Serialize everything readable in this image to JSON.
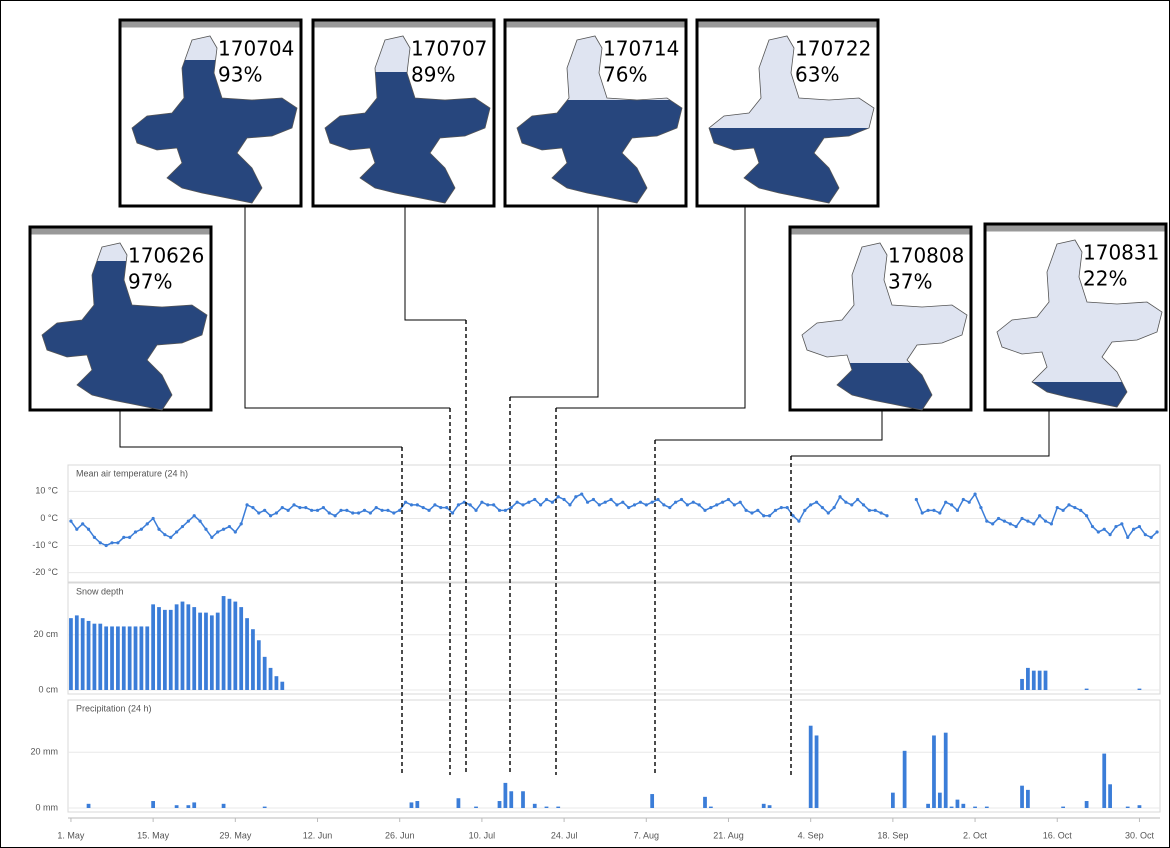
{
  "snapshots": [
    {
      "date": "170626",
      "cover": "97%"
    },
    {
      "date": "170704",
      "cover": "93%"
    },
    {
      "date": "170707",
      "cover": "89%"
    },
    {
      "date": "170714",
      "cover": "76%"
    },
    {
      "date": "170722",
      "cover": "63%"
    },
    {
      "date": "170808",
      "cover": "37%"
    },
    {
      "date": "170831",
      "cover": "22%"
    }
  ],
  "chart_data": [
    {
      "type": "line",
      "title": "Mean air temperature (24 h)",
      "color": "#3b7dd8",
      "grid": true,
      "ylim": [
        -22,
        19
      ],
      "yticks": [
        {
          "value": -20,
          "label": "-20 °C"
        },
        {
          "value": -10,
          "label": "-10 °C"
        },
        {
          "value": 0,
          "label": "0 °C"
        },
        {
          "value": 10,
          "label": "10 °C"
        }
      ],
      "values": [
        -1,
        -4,
        -2,
        -4,
        -7,
        -9,
        -10,
        -9,
        -9,
        -7,
        -7,
        -5,
        -4,
        -2,
        0,
        -4,
        -6,
        -7,
        -5,
        -3,
        -1,
        1,
        -1,
        -4,
        -7,
        -5,
        -4,
        -3,
        -5,
        -2,
        5,
        4,
        2,
        3,
        1,
        2,
        4,
        3,
        5,
        4,
        4,
        3,
        3,
        4,
        2,
        1,
        3,
        3,
        2,
        2,
        3,
        2,
        4,
        3,
        3,
        2,
        3,
        6,
        5,
        5,
        4,
        3,
        5,
        4,
        4,
        2,
        5,
        6,
        5,
        3,
        6,
        5,
        5,
        3,
        3,
        4,
        6,
        5,
        6,
        7,
        5,
        7,
        6,
        8,
        7,
        5,
        8,
        9,
        6,
        7,
        5,
        6,
        7,
        5,
        6,
        4,
        5,
        6,
        5,
        6,
        7,
        5,
        4,
        6,
        7,
        5,
        6,
        5,
        3,
        4,
        5,
        6,
        7,
        5,
        6,
        3,
        2,
        3,
        1,
        1,
        3,
        4,
        4,
        1,
        -1,
        3,
        5,
        6,
        4,
        2,
        4,
        8,
        6,
        5,
        7,
        5,
        3,
        3,
        2,
        1,
        null,
        null,
        null,
        null,
        7,
        2,
        3,
        3,
        2,
        6,
        5,
        3,
        7,
        6,
        9,
        4,
        -1,
        -2,
        0,
        -1,
        -2,
        -3,
        0,
        -1,
        -2,
        1,
        -1,
        -2,
        4,
        3,
        5,
        4,
        3,
        1,
        -3,
        -5,
        -4,
        -6,
        -3,
        -2,
        -7,
        -4,
        -3,
        -6,
        -7,
        -5
      ]
    },
    {
      "type": "bar",
      "title": "Snow depth",
      "color": "#3b7dd8",
      "grid": true,
      "ylim": [
        0,
        38
      ],
      "yticks": [
        {
          "value": 0,
          "label": "0 cm"
        },
        {
          "value": 20,
          "label": "20 cm"
        }
      ],
      "values": [
        26,
        27,
        26,
        25,
        24,
        24,
        23,
        23,
        23,
        23,
        23,
        23,
        23,
        23,
        31,
        30,
        29,
        29,
        31,
        32,
        31,
        30,
        28,
        28,
        27,
        28,
        34,
        33,
        32,
        30,
        26,
        22,
        18,
        12,
        8,
        5,
        3,
        0,
        0,
        0,
        0,
        0,
        0,
        0,
        0,
        0,
        0,
        0,
        0,
        0,
        0,
        0,
        0,
        0,
        0,
        0,
        0,
        0,
        0,
        0,
        0,
        0,
        0,
        0,
        0,
        0,
        0,
        0,
        0,
        0,
        0,
        0,
        0,
        0,
        0,
        0,
        0,
        0,
        0,
        0,
        0,
        0,
        0,
        0,
        0,
        0,
        0,
        0,
        0,
        0,
        0,
        0,
        0,
        0,
        0,
        0,
        0,
        0,
        0,
        0,
        0,
        0,
        0,
        0,
        0,
        0,
        0,
        0,
        0,
        0,
        0,
        0,
        0,
        0,
        0,
        0,
        0,
        0,
        0,
        0,
        0,
        0,
        0,
        0,
        0,
        0,
        0,
        0,
        0,
        0,
        0,
        0,
        0,
        0,
        0,
        0,
        0,
        0,
        0,
        0,
        0,
        0,
        0,
        0,
        0,
        0,
        0,
        0,
        0,
        0,
        0,
        0,
        0,
        0,
        0,
        0,
        0,
        0,
        0,
        0,
        0,
        0,
        4,
        8,
        7,
        7,
        7,
        0,
        0,
        0,
        0,
        0,
        0,
        0.5,
        0,
        0,
        0,
        0,
        0,
        0,
        0,
        0,
        0.5,
        0,
        0,
        0
      ]
    },
    {
      "type": "bar",
      "title": "Precipitation (24 h)",
      "color": "#3b7dd8",
      "grid": true,
      "ylim": [
        0,
        38
      ],
      "yticks": [
        {
          "value": 0,
          "label": "0 mm"
        },
        {
          "value": 20,
          "label": "20 mm"
        }
      ],
      "categories": [
        "1. May",
        null,
        null,
        null,
        null,
        null,
        null,
        null,
        null,
        null,
        null,
        null,
        null,
        null,
        "15. May",
        null,
        null,
        null,
        null,
        null,
        null,
        null,
        null,
        null,
        null,
        null,
        null,
        null,
        "29. May",
        null,
        null,
        null,
        null,
        null,
        null,
        null,
        null,
        null,
        null,
        null,
        null,
        null,
        "12. Jun",
        null,
        null,
        null,
        null,
        null,
        null,
        null,
        null,
        null,
        null,
        null,
        null,
        null,
        "26. Jun",
        null,
        null,
        null,
        null,
        null,
        null,
        null,
        null,
        null,
        null,
        null,
        null,
        null,
        "10. Jul",
        null,
        null,
        null,
        null,
        null,
        null,
        null,
        null,
        null,
        null,
        null,
        null,
        null,
        "24. Jul",
        null,
        null,
        null,
        null,
        null,
        null,
        null,
        null,
        null,
        null,
        null,
        null,
        null,
        "7. Aug",
        null,
        null,
        null,
        null,
        null,
        null,
        null,
        null,
        null,
        null,
        null,
        null,
        null,
        "21. Aug",
        null,
        null,
        null,
        null,
        null,
        null,
        null,
        null,
        null,
        null,
        null,
        null,
        null,
        "4. Sep",
        null,
        null,
        null,
        null,
        null,
        null,
        null,
        null,
        null,
        null,
        null,
        null,
        null,
        "18. Sep",
        null,
        null,
        null,
        null,
        null,
        null,
        null,
        null,
        null,
        null,
        null,
        null,
        null,
        "2. Oct",
        null,
        null,
        null,
        null,
        null,
        null,
        null,
        null,
        null,
        null,
        null,
        null,
        null,
        "16. Oct",
        null,
        null,
        null,
        null,
        null,
        null,
        null,
        null,
        null,
        null,
        null,
        null,
        null,
        "30. Oct",
        null,
        null,
        null
      ],
      "values": [
        0,
        0,
        0,
        1.5,
        0,
        0,
        0,
        0,
        0,
        0,
        0,
        0,
        0,
        0,
        2.5,
        0,
        0,
        0,
        1,
        0,
        1,
        2,
        0,
        0,
        0,
        0,
        1.5,
        0,
        0,
        0,
        0,
        0,
        0,
        0.5,
        0,
        0,
        0,
        0,
        0,
        0,
        0,
        0,
        0,
        0,
        0,
        0,
        0,
        0,
        0,
        0,
        0,
        0,
        0,
        0,
        0,
        0,
        0,
        0,
        2,
        2.5,
        0,
        0,
        0,
        0,
        0,
        0,
        3.5,
        0,
        0,
        0.5,
        0,
        0,
        0,
        2.5,
        9,
        6,
        0,
        6,
        0,
        1.5,
        0,
        0.5,
        0,
        0.5,
        0,
        0,
        0,
        0,
        0,
        0,
        0,
        0,
        0,
        0,
        0,
        0,
        0,
        0,
        0,
        5,
        0,
        0,
        0,
        0,
        0,
        0,
        0,
        0,
        4,
        0.5,
        0,
        0,
        0,
        0,
        0,
        0,
        0,
        0,
        1.5,
        1,
        0,
        0,
        0,
        0,
        0,
        0,
        29.5,
        26,
        0,
        0,
        0,
        0,
        0,
        0,
        0,
        0,
        0,
        0,
        0,
        0,
        5.5,
        0,
        20.5,
        0,
        0,
        0,
        1.5,
        26,
        5.5,
        27,
        0.5,
        3,
        1.5,
        0,
        0.5,
        0,
        0.5,
        0,
        0,
        0,
        0,
        0,
        8,
        6.5,
        0,
        0,
        0,
        0,
        0,
        0.5,
        0,
        0,
        0,
        2.5,
        0,
        0,
        19.5,
        8.5,
        0,
        0,
        0.5,
        0,
        1,
        0,
        0,
        0
      ]
    }
  ]
}
